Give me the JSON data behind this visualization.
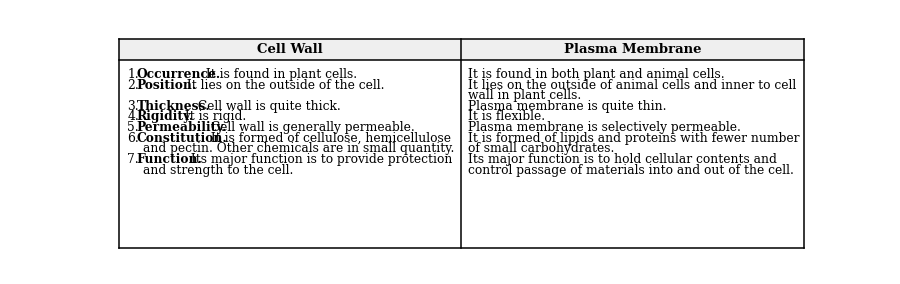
{
  "col1_header": "Cell Wall",
  "col2_header": "Plasma Membrane",
  "bg_color": "#ffffff",
  "header_bg": "#efefef",
  "border_color": "#000000",
  "text_color": "#000000",
  "font_size": 8.8,
  "header_font_size": 9.5,
  "left_entries": [
    {
      "num": "1.",
      "bold": "Occurrence.",
      "rest": " It is found in plant cells.",
      "cont": ""
    },
    {
      "num": "2.",
      "bold": "Position.",
      "rest": " It lies on the outside of the cell.",
      "cont": ""
    },
    {
      "num": "3.",
      "bold": "Thickness.",
      "rest": " Cell wall is quite thick.",
      "cont": ""
    },
    {
      "num": "4.",
      "bold": "Rigidity.",
      "rest": " It is rigid.",
      "cont": ""
    },
    {
      "num": "5.",
      "bold": "Permeability.",
      "rest": " Cell wall is generally permeable.",
      "cont": ""
    },
    {
      "num": "6.",
      "bold": "Constitution.",
      "rest": " It is formed of cellulose, hemicellulose",
      "cont": "   and pectin. Other chemicals are in small quantity."
    },
    {
      "num": "7.",
      "bold": "Function.",
      "rest": " Its major function is to provide protection",
      "cont": "   and strength to the cell."
    }
  ],
  "right_lines": [
    "It is found in both plant and animal cells.",
    "It lies on the outside of animal cells and inner to cell",
    "wall in plant cells.",
    "Plasma membrane is quite thin.",
    "It is flexible.",
    "Plasma membrane is selectively permeable.",
    "It is formed of lipids and proteins with fewer number",
    "of small carbohydrates.",
    "Its major function is to hold cellular contents and",
    "control passage of materials into and out of the cell."
  ],
  "right_line_rows": [
    0,
    1,
    2,
    3,
    4,
    5,
    6,
    7,
    8,
    9
  ],
  "left_entry_rows": [
    0,
    1,
    3,
    4,
    5,
    6,
    8
  ],
  "left_cont_rows": [
    -1,
    -1,
    -1,
    -1,
    -1,
    7,
    9
  ]
}
